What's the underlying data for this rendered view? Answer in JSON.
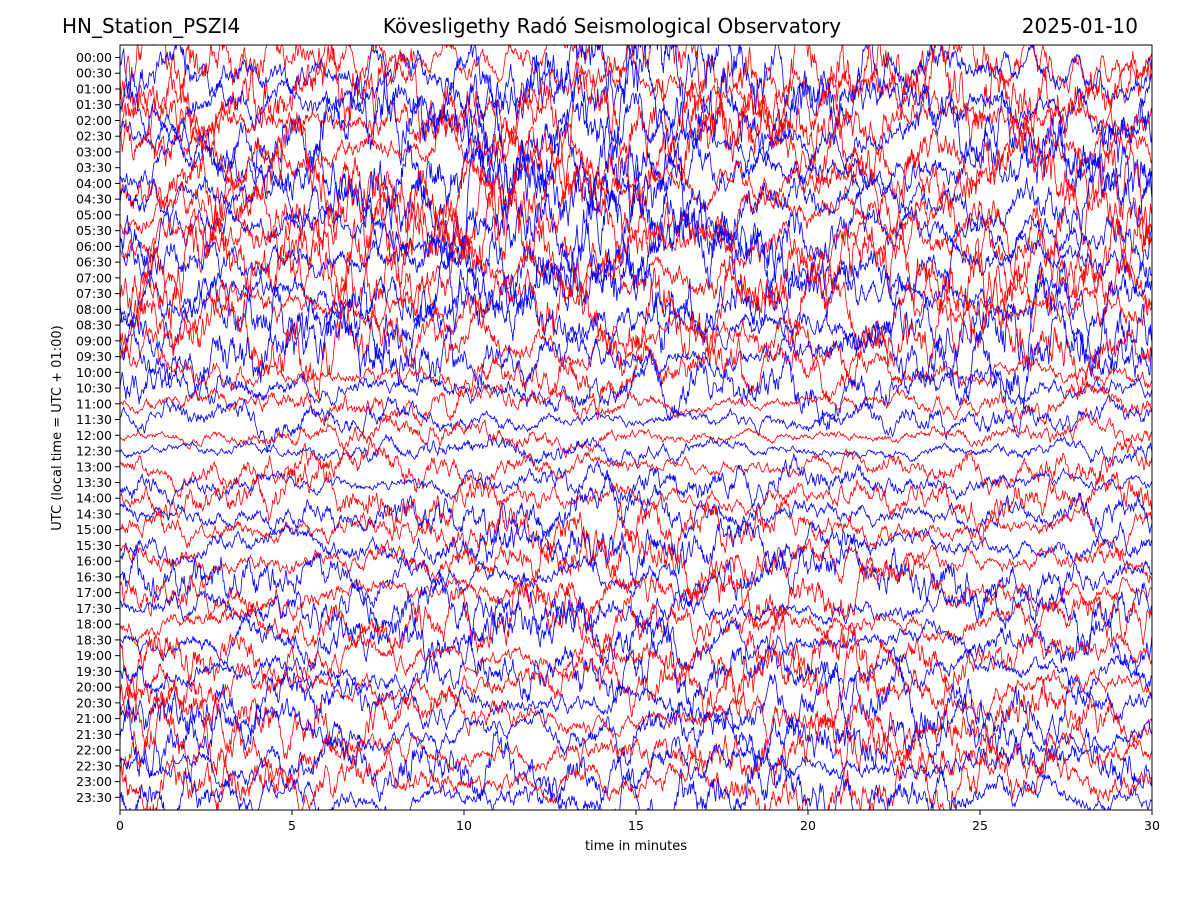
{
  "header": {
    "left": "HN_Station_PSZI4",
    "center": "Kövesligethy Radó Seismological Observatory",
    "right": "2025-01-10"
  },
  "chart_data": {
    "type": "line",
    "xlabel": "time in minutes",
    "ylabel": "UTC (local time = UTC + 01:00)",
    "xlim": [
      0,
      30
    ],
    "x_ticks": [
      0,
      5,
      10,
      15,
      20,
      25,
      30
    ],
    "y_tick_labels": [
      "00:00",
      "00:30",
      "01:00",
      "01:30",
      "02:00",
      "02:30",
      "03:00",
      "03:30",
      "04:00",
      "04:30",
      "05:00",
      "05:30",
      "06:00",
      "06:30",
      "07:00",
      "07:30",
      "08:00",
      "08:30",
      "09:00",
      "09:30",
      "10:00",
      "10:30",
      "11:00",
      "11:30",
      "12:00",
      "12:30",
      "13:00",
      "13:30",
      "14:00",
      "14:30",
      "15:00",
      "15:30",
      "16:00",
      "16:30",
      "17:00",
      "17:30",
      "18:00",
      "18:30",
      "19:00",
      "19:30",
      "20:00",
      "20:30",
      "21:00",
      "21:30",
      "22:00",
      "22:30",
      "23:00",
      "23:30"
    ],
    "series_colors": [
      "#ff0000",
      "#0000ff"
    ],
    "grid": false,
    "note_colors_alternate": true,
    "relative_amplitude_by_hour": [
      1.6,
      1.6,
      1.6,
      1.6,
      1.6,
      1.6,
      1.6,
      1.6,
      1.5,
      1.3,
      1.0,
      0.6,
      0.5,
      0.7,
      0.9,
      1.0,
      1.0,
      1.0,
      1.1,
      1.1,
      1.1,
      1.1,
      1.1,
      1.1
    ]
  }
}
